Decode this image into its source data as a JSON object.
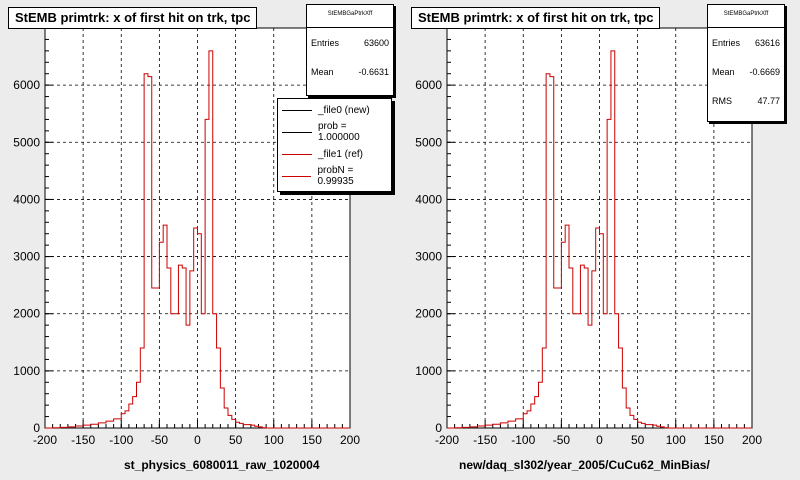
{
  "footer_text": "",
  "chart_data": [
    {
      "type": "histogram",
      "title": "StEMB primtrk: x of first hit on trk, tpc",
      "xlabel": "st_physics_6080011_raw_1020004",
      "xlim": [
        -200,
        200
      ],
      "ylim": [
        0,
        7000
      ],
      "xticks": [
        -200,
        -150,
        -100,
        -50,
        0,
        50,
        100,
        150,
        200
      ],
      "yticks": [
        0,
        1000,
        2000,
        3000,
        4000,
        5000,
        6000
      ],
      "grid": true,
      "stats": {
        "name": "StEMBGaPtrkXff",
        "rows": [
          {
            "label": "Entries",
            "value": "63600"
          },
          {
            "label": "Mean",
            "value": "-0.6631"
          }
        ]
      },
      "legend": {
        "placement": "top-right",
        "entries": [
          {
            "label": "_file0 (new)",
            "color": "#000000"
          },
          {
            "label": "prob = 1.000000",
            "color": "#000000"
          },
          {
            "label": "_file1 (ref)",
            "color": "#cc0000"
          },
          {
            "label": "probN = 0.99935",
            "color": "#cc0000"
          }
        ]
      },
      "series": [
        {
          "color": "#cc0000",
          "bin_edges": [
            -200,
            -190,
            -180,
            -170,
            -160,
            -150,
            -140,
            -130,
            -120,
            -110,
            -100,
            -95,
            -90,
            -85,
            -80,
            -75,
            -70,
            -65,
            -60,
            -50,
            -45,
            -40,
            -35,
            -30,
            -25,
            -20,
            -15,
            -10,
            -5,
            0,
            5,
            10,
            15,
            20,
            25,
            30,
            35,
            40,
            45,
            50,
            55,
            60,
            70,
            75,
            80,
            85,
            90,
            95,
            100,
            110,
            120,
            130,
            140,
            150,
            160,
            170,
            180,
            200
          ],
          "values": [
            0,
            5,
            10,
            20,
            35,
            50,
            65,
            90,
            120,
            160,
            250,
            300,
            420,
            550,
            800,
            1400,
            6200,
            6150,
            2450,
            3250,
            3550,
            2800,
            2000,
            2000,
            2850,
            2800,
            1800,
            2750,
            3500,
            3400,
            2000,
            5400,
            6600,
            2000,
            1400,
            700,
            350,
            220,
            150,
            100,
            80,
            60,
            50,
            30,
            20,
            5,
            0,
            0,
            0,
            0,
            0,
            0,
            0,
            0,
            0,
            0,
            0
          ]
        }
      ]
    },
    {
      "type": "histogram",
      "title": "StEMB primtrk: x of first hit on trk, tpc",
      "xlabel": "new/daq_sl302/year_2005/CuCu62_MinBias/",
      "xlim": [
        -200,
        200
      ],
      "ylim": [
        0,
        7000
      ],
      "xticks": [
        -200,
        -150,
        -100,
        -50,
        0,
        50,
        100,
        150,
        200
      ],
      "yticks": [
        0,
        1000,
        2000,
        3000,
        4000,
        5000,
        6000
      ],
      "grid": true,
      "stats": {
        "name": "StEMBGaPtrkXff",
        "rows": [
          {
            "label": "Entries",
            "value": "63616"
          },
          {
            "label": "Mean",
            "value": "-0.6669"
          },
          {
            "label": "RMS",
            "value": "47.77"
          }
        ]
      },
      "series": [
        {
          "color": "#cc0000",
          "bin_edges": [
            -200,
            -190,
            -180,
            -170,
            -160,
            -150,
            -140,
            -130,
            -120,
            -110,
            -100,
            -95,
            -90,
            -85,
            -80,
            -75,
            -70,
            -65,
            -60,
            -50,
            -45,
            -40,
            -35,
            -30,
            -25,
            -20,
            -15,
            -10,
            -5,
            0,
            5,
            10,
            15,
            20,
            25,
            30,
            35,
            40,
            45,
            50,
            55,
            60,
            70,
            75,
            80,
            85,
            90,
            95,
            100,
            110,
            120,
            130,
            140,
            150,
            160,
            170,
            180,
            200
          ],
          "values": [
            0,
            5,
            10,
            20,
            35,
            50,
            65,
            90,
            120,
            160,
            250,
            300,
            420,
            550,
            800,
            1400,
            6200,
            6150,
            2450,
            3250,
            3550,
            2800,
            2000,
            2000,
            2850,
            2800,
            1800,
            2750,
            3500,
            3400,
            2000,
            5400,
            6600,
            2000,
            1400,
            700,
            350,
            220,
            150,
            100,
            80,
            60,
            50,
            30,
            20,
            5,
            0,
            0,
            0,
            0,
            0,
            0,
            0,
            0,
            0,
            0,
            0
          ]
        }
      ]
    }
  ]
}
